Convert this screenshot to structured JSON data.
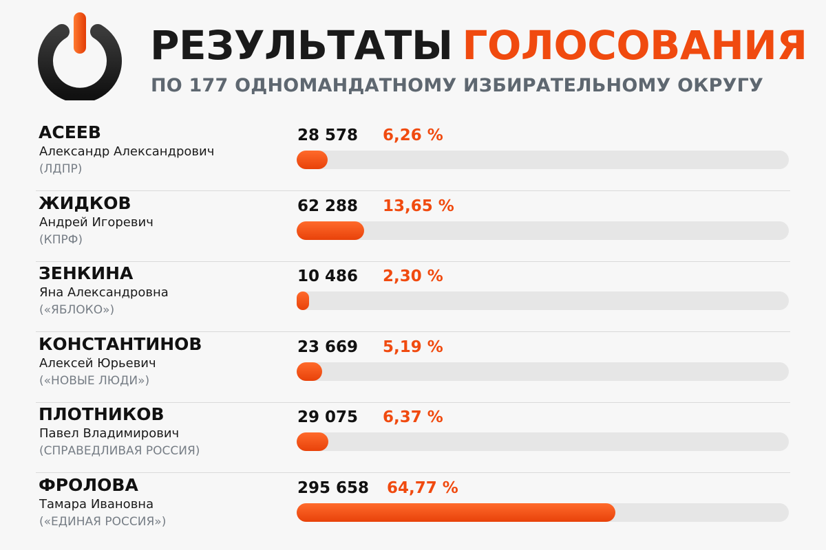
{
  "header": {
    "title_part1": "РЕЗУЛЬТАТЫ",
    "title_part2": "ГОЛОСОВАНИЯ",
    "subtitle": "ПО 177 ОДНОМАНДАТНОМУ ИЗБИРАТЕЛЬНОМУ ОКРУГУ",
    "logo_icon": "power-icon"
  },
  "colors": {
    "accent": "#f04a0f",
    "track": "#e6e6e6",
    "dark": "#1a1a1a",
    "muted": "#767d85"
  },
  "chart_data": {
    "type": "bar",
    "title": "РЕЗУЛЬТАТЫ ГОЛОСОВАНИЯ",
    "subtitle": "ПО 177 ОДНОМАНДАТНОМУ ИЗБИРАТЕЛЬНОМУ ОКРУГУ",
    "orientation": "horizontal",
    "xlim": [
      0,
      100
    ],
    "grid": false,
    "candidates": [
      {
        "surname": "АСЕЕВ",
        "name": "Александр Александрович",
        "party": "(ЛДПР)",
        "votes": "28 578",
        "percent_label": "6,26 %",
        "percent": 6.26
      },
      {
        "surname": "ЖИДКОВ",
        "name": "Андрей Игоревич",
        "party": "(КПРФ)",
        "votes": "62 288",
        "percent_label": "13,65 %",
        "percent": 13.65
      },
      {
        "surname": "ЗЕНКИНА",
        "name": "Яна Александровна",
        "party": "(«ЯБЛОКО»)",
        "votes": "10 486",
        "percent_label": "2,30 %",
        "percent": 2.3
      },
      {
        "surname": "КОНСТАНТИНОВ",
        "name": "Алексей Юрьевич",
        "party": "(«НОВЫЕ ЛЮДИ»)",
        "votes": "23 669",
        "percent_label": "5,19 %",
        "percent": 5.19
      },
      {
        "surname": "ПЛОТНИКОВ",
        "name": "Павел Владимирович",
        "party": "(СПРАВЕДЛИВАЯ РОССИЯ)",
        "votes": "29 075",
        "percent_label": "6,37 %",
        "percent": 6.37
      },
      {
        "surname": "ФРОЛОВА",
        "name": "Тамара Ивановна",
        "party": "(«ЕДИНАЯ РОССИЯ»)",
        "votes": "295 658",
        "percent_label": "64,77 %",
        "percent": 64.77
      }
    ]
  }
}
